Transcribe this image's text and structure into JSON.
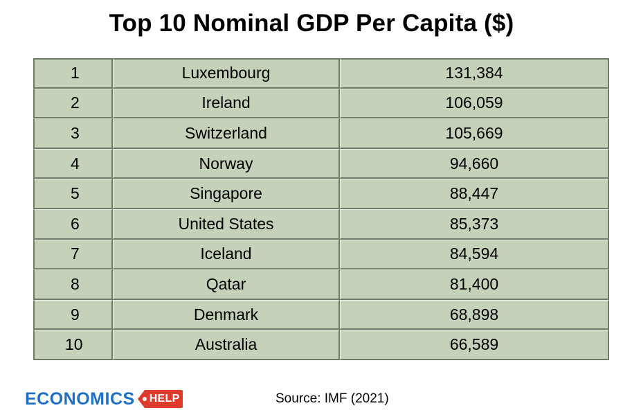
{
  "chart_data": {
    "type": "table",
    "title": "Top 10 Nominal GDP Per Capita ($)",
    "rows": [
      {
        "rank": "1",
        "country": "Luxembourg",
        "value": "131,384"
      },
      {
        "rank": "2",
        "country": "Ireland",
        "value": "106,059"
      },
      {
        "rank": "3",
        "country": "Switzerland",
        "value": "105,669"
      },
      {
        "rank": "4",
        "country": "Norway",
        "value": "94,660"
      },
      {
        "rank": "5",
        "country": "Singapore",
        "value": "88,447"
      },
      {
        "rank": "6",
        "country": "United States",
        "value": "85,373"
      },
      {
        "rank": "7",
        "country": "Iceland",
        "value": "84,594"
      },
      {
        "rank": "8",
        "country": "Qatar",
        "value": "81,400"
      },
      {
        "rank": "9",
        "country": "Denmark",
        "value": "68,898"
      },
      {
        "rank": "10",
        "country": "Australia",
        "value": "66,589"
      }
    ],
    "source": "Source: IMF (2021)"
  },
  "logo": {
    "word": "ECONOMICS",
    "tag": "HELP",
    "word_color": "#1f6fc4",
    "tag_color": "#e03a2f"
  },
  "colors": {
    "cell_background": "#c5d2ba",
    "cell_border": "#6f7a68"
  }
}
